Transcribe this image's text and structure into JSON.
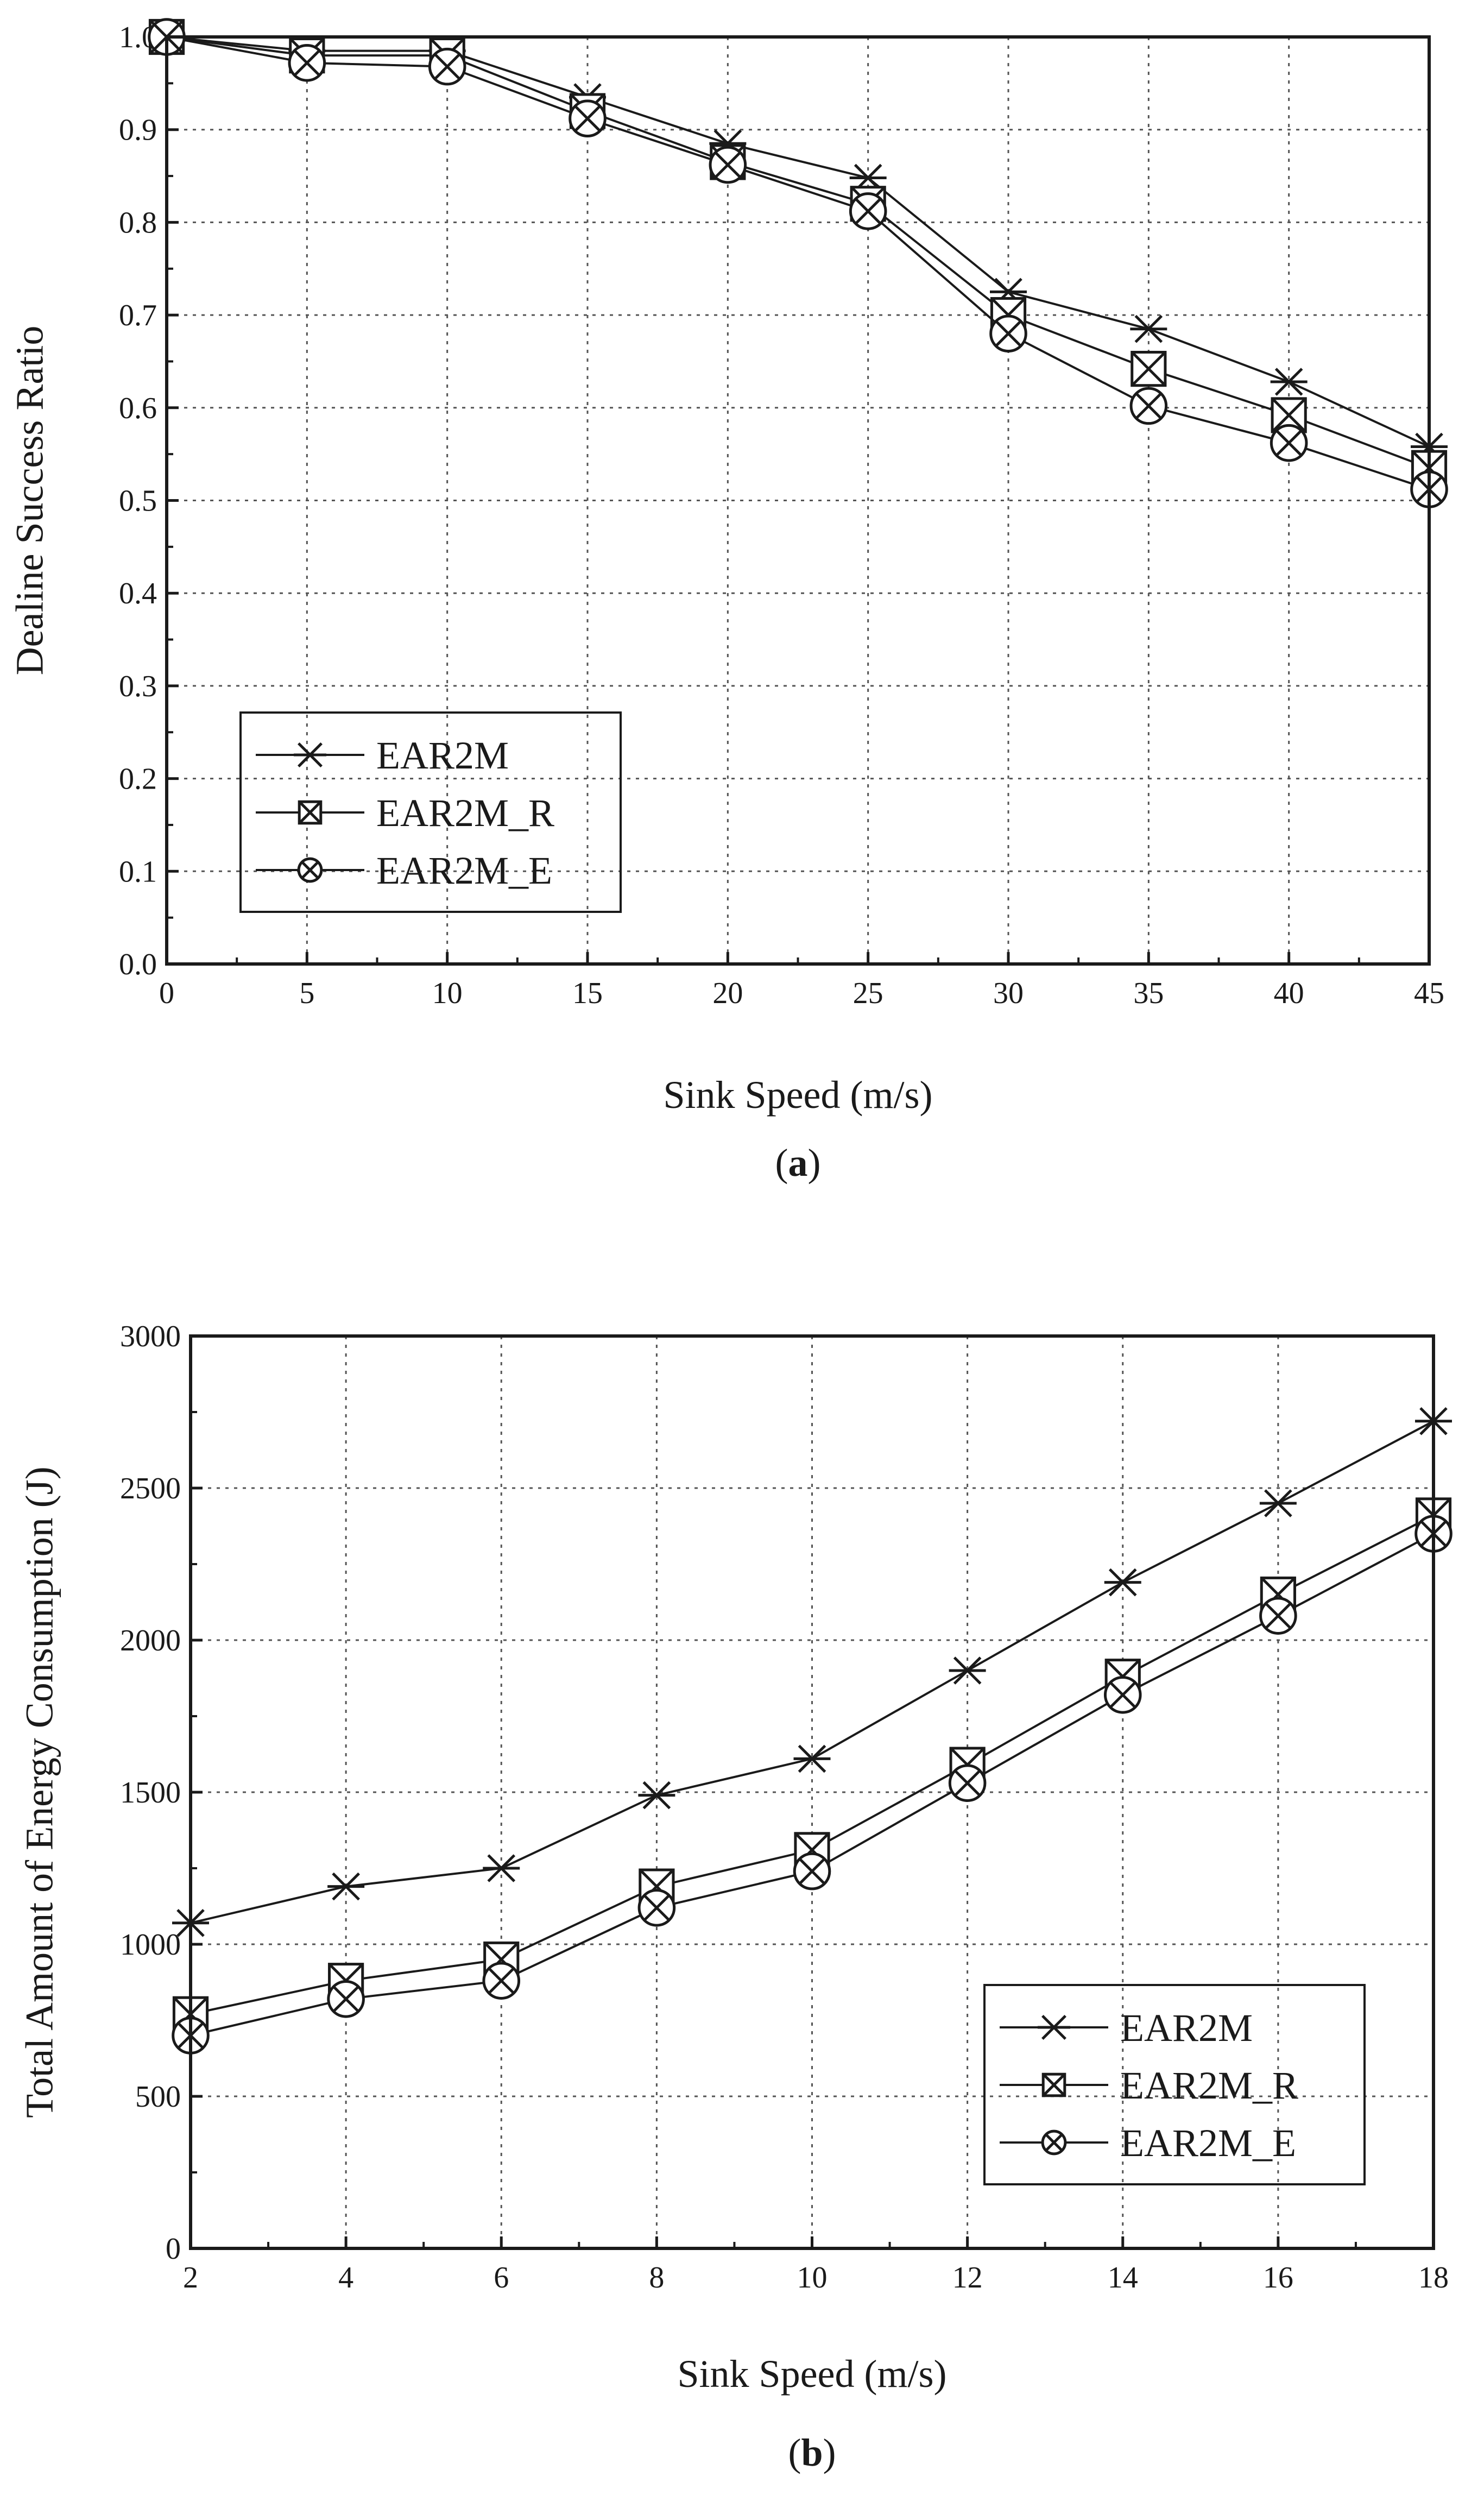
{
  "chart_data": [
    {
      "type": "line",
      "panel": "a",
      "caption_open": "(",
      "caption_label": "a",
      "caption_close": ")",
      "title": "",
      "xlabel": "Sink Speed (m/s)",
      "ylabel": "Dealine Success Ratio",
      "xlim": [
        0,
        45
      ],
      "ylim": [
        0.0,
        1.0
      ],
      "xticks": [
        "0",
        "5",
        "10",
        "15",
        "20",
        "25",
        "30",
        "35",
        "40",
        "45"
      ],
      "yticks": [
        "0.0",
        "0.1",
        "0.2",
        "0.3",
        "0.4",
        "0.5",
        "0.6",
        "0.7",
        "0.8",
        "0.9",
        "1.0"
      ],
      "grid": true,
      "legend_position": "bottom-left",
      "x": [
        0,
        5,
        10,
        15,
        20,
        25,
        30,
        35,
        40,
        45
      ],
      "series": [
        {
          "name": "EAR2M",
          "marker": "asterisk",
          "values": [
            1.0,
            0.985,
            0.985,
            0.935,
            0.885,
            0.848,
            0.725,
            0.685,
            0.628,
            0.558
          ]
        },
        {
          "name": "EAR2M_R",
          "marker": "boxed-x",
          "values": [
            1.0,
            0.98,
            0.98,
            0.92,
            0.865,
            0.82,
            0.7,
            0.642,
            0.592,
            0.535
          ]
        },
        {
          "name": "EAR2M_E",
          "marker": "circled-x",
          "values": [
            1.0,
            0.972,
            0.968,
            0.912,
            0.862,
            0.812,
            0.68,
            0.602,
            0.562,
            0.512
          ]
        }
      ]
    },
    {
      "type": "line",
      "panel": "b",
      "caption_open": "(",
      "caption_label": "b",
      "caption_close": ")",
      "title": "",
      "xlabel": "Sink Speed (m/s)",
      "ylabel": "Total Amount of Energy Consumption (J)",
      "xlim": [
        2,
        18
      ],
      "ylim": [
        0,
        3000
      ],
      "xticks": [
        "2",
        "4",
        "6",
        "8",
        "10",
        "12",
        "14",
        "16",
        "18"
      ],
      "yticks": [
        "0",
        "500",
        "1000",
        "1500",
        "2000",
        "2500",
        "3000"
      ],
      "grid": true,
      "legend_position": "bottom-right",
      "x": [
        2,
        4,
        6,
        8,
        10,
        12,
        14,
        16,
        18
      ],
      "series": [
        {
          "name": "EAR2M",
          "marker": "asterisk",
          "values": [
            1070,
            1190,
            1250,
            1490,
            1610,
            1900,
            2190,
            2450,
            2720
          ]
        },
        {
          "name": "EAR2M_R",
          "marker": "boxed-x",
          "values": [
            770,
            880,
            950,
            1190,
            1310,
            1590,
            1880,
            2150,
            2410
          ]
        },
        {
          "name": "EAR2M_E",
          "marker": "circled-x",
          "values": [
            700,
            820,
            880,
            1120,
            1240,
            1530,
            1820,
            2080,
            2350
          ]
        }
      ]
    }
  ]
}
